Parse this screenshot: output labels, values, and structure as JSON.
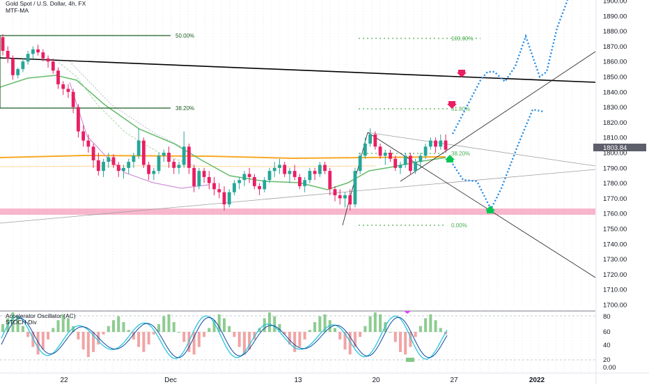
{
  "header": {
    "symbol": "Gold Spot / U.S. Dollar, 4h, FX",
    "indicator": "MTF-MA"
  },
  "oscillator": {
    "title": "Accelerator Oscillator (AC)",
    "subtitle": "STOCH-Div",
    "axis_labels": [
      "80",
      "60",
      "40",
      "20",
      "0.00"
    ]
  },
  "price_box": "1803.84",
  "colors": {
    "bull": "#26a69a",
    "bear": "#e91e63",
    "projection": "#1e88e5",
    "fib": "#4caf50",
    "yellow_ma": "#f9a825",
    "green_ma": "#66bb6a",
    "pink_ma": "#ce93d8",
    "support_zone": "#f48fb1"
  },
  "chart_data": {
    "type": "candlestick",
    "y_axis": {
      "ticks": [
        "1900.00",
        "1890.00",
        "1880.00",
        "1870.00",
        "1860.00",
        "1850.00",
        "1840.00",
        "1830.00",
        "1820.00",
        "1810.00",
        "1800.00",
        "1790.00",
        "1780.00",
        "1770.00",
        "1760.00",
        "1750.00",
        "1740.00",
        "1730.00",
        "1720.00",
        "1710.00",
        "1700.00"
      ],
      "range": [
        1696,
        1902
      ]
    },
    "x_axis": {
      "ticks": [
        "22",
        "Dec",
        "13",
        "20",
        "27",
        "2022"
      ]
    },
    "horizontal_levels": [
      {
        "label": "50.00%",
        "value": 1877
      },
      {
        "label": "38.20%",
        "value": 1829
      }
    ],
    "fib_levels": [
      {
        "label": "100.00%",
        "value": 1874
      },
      {
        "label": "61.80%",
        "value": 1829
      },
      {
        "label": "38.20%",
        "value": 1800
      },
      {
        "label": "0.00%",
        "value": 1752
      }
    ],
    "support_zone": [
      1758,
      1762
    ],
    "last_price": 1803.84
  },
  "candles": [
    [
      1876,
      1878,
      1864,
      1867
    ],
    [
      1867,
      1870,
      1859,
      1862
    ],
    [
      1862,
      1864,
      1848,
      1851
    ],
    [
      1851,
      1856,
      1849,
      1855
    ],
    [
      1855,
      1862,
      1853,
      1860
    ],
    [
      1860,
      1867,
      1858,
      1865
    ],
    [
      1865,
      1870,
      1862,
      1868
    ],
    [
      1868,
      1871,
      1864,
      1866
    ],
    [
      1866,
      1868,
      1860,
      1862
    ],
    [
      1862,
      1864,
      1856,
      1860
    ],
    [
      1860,
      1862,
      1852,
      1854
    ],
    [
      1854,
      1856,
      1842,
      1845
    ],
    [
      1845,
      1847,
      1838,
      1842
    ],
    [
      1842,
      1845,
      1836,
      1840
    ],
    [
      1840,
      1842,
      1826,
      1830
    ],
    [
      1830,
      1832,
      1810,
      1814
    ],
    [
      1814,
      1818,
      1804,
      1808
    ],
    [
      1808,
      1812,
      1800,
      1804
    ],
    [
      1804,
      1806,
      1790,
      1795
    ],
    [
      1795,
      1800,
      1785,
      1788
    ],
    [
      1788,
      1796,
      1784,
      1794
    ],
    [
      1794,
      1800,
      1790,
      1797
    ],
    [
      1797,
      1799,
      1790,
      1792
    ],
    [
      1792,
      1794,
      1784,
      1788
    ],
    [
      1788,
      1792,
      1783,
      1790
    ],
    [
      1790,
      1796,
      1786,
      1794
    ],
    [
      1794,
      1800,
      1790,
      1798
    ],
    [
      1798,
      1816,
      1796,
      1808
    ],
    [
      1808,
      1810,
      1790,
      1792
    ],
    [
      1792,
      1794,
      1782,
      1786
    ],
    [
      1786,
      1790,
      1782,
      1788
    ],
    [
      1788,
      1800,
      1786,
      1798
    ],
    [
      1798,
      1802,
      1794,
      1800
    ],
    [
      1800,
      1804,
      1790,
      1794
    ],
    [
      1794,
      1796,
      1786,
      1790
    ],
    [
      1790,
      1794,
      1786,
      1792
    ],
    [
      1792,
      1814,
      1790,
      1804
    ],
    [
      1804,
      1806,
      1786,
      1790
    ],
    [
      1790,
      1792,
      1774,
      1778
    ],
    [
      1778,
      1790,
      1776,
      1788
    ],
    [
      1788,
      1790,
      1780,
      1784
    ],
    [
      1784,
      1788,
      1776,
      1780
    ],
    [
      1780,
      1784,
      1772,
      1776
    ],
    [
      1776,
      1780,
      1770,
      1774
    ],
    [
      1774,
      1778,
      1762,
      1766
    ],
    [
      1766,
      1776,
      1764,
      1774
    ],
    [
      1774,
      1782,
      1772,
      1780
    ],
    [
      1780,
      1784,
      1776,
      1782
    ],
    [
      1782,
      1788,
      1778,
      1786
    ],
    [
      1786,
      1790,
      1780,
      1784
    ],
    [
      1784,
      1786,
      1776,
      1778
    ],
    [
      1778,
      1780,
      1772,
      1776
    ],
    [
      1776,
      1784,
      1774,
      1782
    ],
    [
      1782,
      1790,
      1780,
      1788
    ],
    [
      1788,
      1794,
      1784,
      1790
    ],
    [
      1790,
      1796,
      1786,
      1792
    ],
    [
      1792,
      1794,
      1784,
      1786
    ],
    [
      1786,
      1790,
      1780,
      1788
    ],
    [
      1788,
      1792,
      1782,
      1784
    ],
    [
      1784,
      1786,
      1776,
      1778
    ],
    [
      1778,
      1784,
      1774,
      1782
    ],
    [
      1782,
      1790,
      1780,
      1788
    ],
    [
      1788,
      1790,
      1782,
      1786
    ],
    [
      1786,
      1794,
      1784,
      1792
    ],
    [
      1792,
      1794,
      1786,
      1788
    ],
    [
      1788,
      1790,
      1772,
      1776
    ],
    [
      1776,
      1778,
      1768,
      1772
    ],
    [
      1772,
      1776,
      1766,
      1770
    ],
    [
      1770,
      1774,
      1764,
      1772
    ],
    [
      1772,
      1776,
      1762,
      1766
    ],
    [
      1766,
      1790,
      1764,
      1788
    ],
    [
      1788,
      1800,
      1786,
      1798
    ],
    [
      1798,
      1810,
      1796,
      1806
    ],
    [
      1806,
      1816,
      1804,
      1812
    ],
    [
      1812,
      1814,
      1802,
      1804
    ],
    [
      1804,
      1806,
      1796,
      1798
    ],
    [
      1798,
      1802,
      1792,
      1800
    ],
    [
      1800,
      1802,
      1794,
      1796
    ],
    [
      1796,
      1798,
      1788,
      1790
    ],
    [
      1790,
      1794,
      1786,
      1792
    ],
    [
      1792,
      1800,
      1790,
      1798
    ],
    [
      1798,
      1800,
      1786,
      1788
    ],
    [
      1788,
      1796,
      1786,
      1794
    ],
    [
      1794,
      1800,
      1790,
      1798
    ],
    [
      1798,
      1806,
      1796,
      1804
    ],
    [
      1804,
      1810,
      1802,
      1808
    ],
    [
      1808,
      1810,
      1800,
      1804
    ],
    [
      1804,
      1812,
      1802,
      1808
    ],
    [
      1808,
      1812,
      1800,
      1802
    ]
  ],
  "osc_bars": [
    0.4,
    0.7,
    1,
    0.8,
    0.3,
    -0.2,
    -0.6,
    -0.9,
    -0.7,
    -0.3,
    0.2,
    0.6,
    0.9,
    0.7,
    0.3,
    -0.3,
    -0.7,
    -1,
    -0.8,
    -0.5,
    -0.1,
    0.3,
    0.6,
    0.8,
    0.5,
    0.1,
    -0.3,
    -0.6,
    -0.8,
    -0.5,
    -0.1,
    0.4,
    0.8,
    0.9,
    0.5,
    0,
    -0.4,
    -0.8,
    -0.9,
    -0.6,
    -0.2,
    0.2,
    0.6,
    0.9,
    0.7,
    0.3,
    -0.2,
    -0.6,
    -0.9,
    -0.7,
    -0.3,
    0.2,
    0.7,
    1,
    0.8,
    0.4,
    -0.1,
    -0.5,
    -0.8,
    -0.6,
    -0.3,
    0.1,
    0.5,
    0.8,
    0.9,
    0.6,
    0.2,
    -0.3,
    -0.7,
    -0.9,
    -0.6,
    -0.2,
    0.3,
    0.8,
    1,
    0.9,
    0.5,
    0,
    -0.4,
    -0.8,
    -0.9,
    -0.6,
    -0.2,
    0.3,
    0.7,
    0.9,
    0.6,
    0.2,
    -0.1
  ]
}
